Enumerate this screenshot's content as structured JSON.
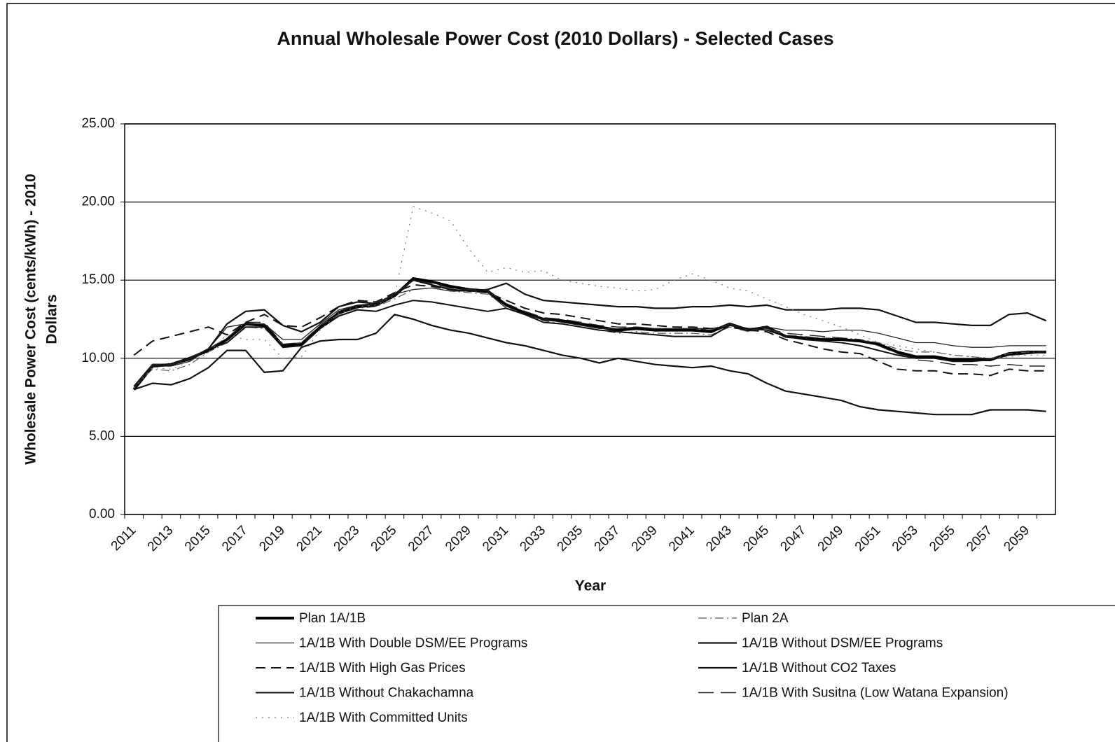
{
  "chart_data": {
    "type": "line",
    "title": "Annual Wholesale Power Cost (2010 Dollars) - Selected Cases",
    "xlabel": "Year",
    "ylabel": [
      "Wholesale Power Cost (cents/kWh) - 2010",
      "Dollars"
    ],
    "categories": [
      "2011",
      null,
      "2013",
      null,
      "2015",
      null,
      "2017",
      null,
      "2019",
      null,
      "2021",
      null,
      "2023",
      null,
      "2025",
      null,
      "2027",
      null,
      "2029",
      null,
      "2031",
      null,
      "2033",
      null,
      "2035",
      null,
      "2037",
      null,
      "2039",
      null,
      "2041",
      null,
      "2043",
      null,
      "2045",
      null,
      "2047",
      null,
      "2049",
      null,
      "2051",
      null,
      "2053",
      null,
      "2055",
      null,
      "2057",
      null,
      "2059",
      null
    ],
    "ylim": [
      0,
      25
    ],
    "yticks": [
      {
        "value": 0,
        "label": "0.00"
      },
      {
        "value": 5,
        "label": "5.00"
      },
      {
        "value": 10,
        "label": "10.00"
      },
      {
        "value": 15,
        "label": "15.00"
      },
      {
        "value": 20,
        "label": "20.00"
      },
      {
        "value": 25,
        "label": "25.00"
      }
    ],
    "grid": true,
    "legend": "bottom",
    "series": [
      {
        "name": "Plan 1A/1B",
        "color": "#000000",
        "line_style": "solid",
        "line_width": 4,
        "values": [
          8.0,
          9.5,
          9.6,
          10.0,
          10.5,
          11.2,
          12.2,
          12.1,
          10.8,
          10.9,
          12.0,
          12.9,
          13.3,
          13.4,
          14.0,
          15.1,
          14.9,
          14.6,
          14.4,
          14.3,
          13.4,
          12.9,
          12.5,
          12.4,
          12.2,
          12.0,
          11.8,
          11.9,
          11.8,
          11.8,
          11.8,
          11.7,
          12.2,
          11.8,
          12.0,
          11.4,
          11.3,
          11.2,
          11.2,
          11.1,
          10.9,
          10.4,
          10.1,
          10.1,
          9.9,
          9.9,
          9.9,
          10.3,
          10.4,
          10.4
        ]
      },
      {
        "name": "Plan 2A",
        "color": "#555555",
        "line_style": "dashdot",
        "line_width": 1.2,
        "values": [
          8.2,
          9.3,
          9.2,
          9.6,
          10.4,
          11.0,
          12.0,
          11.9,
          10.9,
          11.0,
          12.1,
          12.8,
          13.2,
          13.3,
          13.8,
          14.4,
          14.5,
          14.3,
          14.2,
          14.1,
          13.3,
          12.8,
          12.4,
          12.2,
          12.0,
          11.8,
          11.6,
          11.7,
          11.6,
          11.6,
          11.6,
          11.5,
          12.0,
          11.7,
          11.9,
          11.5,
          11.4,
          11.3,
          11.3,
          11.2,
          11.0,
          10.6,
          10.4,
          10.4,
          10.2,
          10.1,
          10.0,
          10.3,
          10.4,
          10.4
        ]
      },
      {
        "name": "1A/1B With Double DSM/EE Programs",
        "color": "#222222",
        "line_style": "solid",
        "line_width": 1.3,
        "values": [
          8.1,
          9.5,
          9.5,
          9.8,
          10.6,
          12.0,
          12.2,
          12.2,
          11.2,
          11.2,
          12.2,
          13.1,
          13.4,
          13.4,
          14.1,
          14.4,
          14.5,
          14.3,
          14.3,
          14.2,
          13.2,
          12.8,
          12.5,
          12.3,
          12.1,
          11.9,
          11.9,
          12.0,
          11.9,
          11.9,
          11.9,
          11.9,
          12.1,
          11.9,
          12.0,
          11.8,
          11.8,
          11.7,
          11.8,
          11.8,
          11.6,
          11.3,
          11.0,
          11.0,
          10.8,
          10.7,
          10.7,
          10.8,
          10.8,
          10.8
        ]
      },
      {
        "name": "1A/1B Without DSM/EE Programs",
        "color": "#111111",
        "line_style": "solid",
        "line_width": 2.2,
        "values": [
          8.2,
          9.6,
          9.6,
          9.9,
          10.6,
          12.2,
          13.0,
          13.1,
          12.1,
          11.7,
          12.3,
          13.3,
          13.6,
          13.5,
          14.1,
          15.0,
          14.7,
          14.4,
          14.3,
          14.4,
          14.8,
          14.1,
          13.7,
          13.6,
          13.5,
          13.4,
          13.3,
          13.3,
          13.2,
          13.2,
          13.3,
          13.3,
          13.4,
          13.3,
          13.4,
          13.1,
          13.1,
          13.1,
          13.2,
          13.2,
          13.1,
          12.7,
          12.3,
          12.3,
          12.2,
          12.1,
          12.1,
          12.8,
          12.9,
          12.4
        ]
      },
      {
        "name": "1A/1B With High Gas Prices",
        "color": "#111111",
        "line_style": "dashed",
        "line_width": 2,
        "values": [
          10.2,
          11.1,
          11.4,
          11.7,
          12.0,
          11.5,
          12.3,
          12.8,
          12.1,
          12.0,
          12.6,
          13.3,
          13.7,
          13.6,
          14.2,
          14.7,
          14.6,
          14.4,
          14.3,
          14.2,
          13.7,
          13.2,
          12.9,
          12.8,
          12.6,
          12.4,
          12.2,
          12.2,
          12.1,
          12.0,
          12.0,
          11.9,
          12.0,
          11.8,
          11.7,
          11.2,
          10.9,
          10.6,
          10.4,
          10.3,
          9.8,
          9.3,
          9.2,
          9.2,
          9.0,
          9.0,
          8.9,
          9.3,
          9.2,
          9.2
        ]
      },
      {
        "name": "1A/1B Without CO2 Taxes",
        "color": "#111111",
        "line_style": "solid",
        "line_width": 2.2,
        "values": [
          8.0,
          8.4,
          8.3,
          8.7,
          9.4,
          10.5,
          10.5,
          9.1,
          9.2,
          10.7,
          11.1,
          11.2,
          11.2,
          11.6,
          12.8,
          12.5,
          12.1,
          11.8,
          11.6,
          11.3,
          11.0,
          10.8,
          10.5,
          10.2,
          10.0,
          9.7,
          10.0,
          9.8,
          9.6,
          9.5,
          9.4,
          9.5,
          9.2,
          9.0,
          8.4,
          7.9,
          7.7,
          7.5,
          7.3,
          6.9,
          6.7,
          6.6,
          6.5,
          6.4,
          6.4,
          6.4,
          6.7,
          6.7,
          6.7,
          6.6
        ]
      },
      {
        "name": "1A/1B Without Chakachamna",
        "color": "#111111",
        "line_style": "solid",
        "line_width": 2,
        "values": [
          8.1,
          9.6,
          9.6,
          10.0,
          10.6,
          11.0,
          12.0,
          12.0,
          10.7,
          10.8,
          11.9,
          12.7,
          13.1,
          13.0,
          13.4,
          13.7,
          13.6,
          13.4,
          13.2,
          13.0,
          13.2,
          12.8,
          12.3,
          12.2,
          12.0,
          11.8,
          11.7,
          11.6,
          11.5,
          11.4,
          11.4,
          11.4,
          12.1,
          11.9,
          11.8,
          11.4,
          11.2,
          11.1,
          11.0,
          10.8,
          10.5,
          10.2,
          10.0,
          10.0,
          9.8,
          9.8,
          9.9,
          10.2,
          10.3,
          10.4
        ]
      },
      {
        "name": "1A/1B With Susitna (Low Watana Expansion)",
        "color": "#222222",
        "line_style": "longdash",
        "line_width": 1.4,
        "values": [
          8.1,
          9.6,
          9.6,
          10.0,
          10.6,
          11.3,
          12.3,
          12.3,
          10.9,
          11.0,
          12.1,
          13.0,
          13.4,
          13.5,
          14.1,
          15.0,
          14.8,
          14.5,
          14.4,
          14.3,
          13.5,
          13.0,
          12.6,
          12.5,
          12.3,
          12.1,
          12.0,
          12.0,
          11.9,
          11.9,
          11.9,
          11.8,
          12.2,
          11.8,
          11.9,
          11.6,
          11.5,
          11.4,
          11.3,
          11.2,
          10.8,
          10.3,
          9.9,
          9.8,
          9.6,
          9.6,
          9.5,
          9.6,
          9.5,
          9.5
        ]
      },
      {
        "name": "1A/1B With Committed Units",
        "color": "#777777",
        "line_style": "dotted",
        "line_width": 1.2,
        "values": [
          8.1,
          9.4,
          9.3,
          9.8,
          10.4,
          11.5,
          11.2,
          11.2,
          10.0,
          10.1,
          11.8,
          12.9,
          13.3,
          13.4,
          14.0,
          19.7,
          19.3,
          18.8,
          17.0,
          15.5,
          15.8,
          15.5,
          15.6,
          15.0,
          14.8,
          14.6,
          14.5,
          14.3,
          14.4,
          15.0,
          15.4,
          15.0,
          14.5,
          14.3,
          13.8,
          13.3,
          12.8,
          12.4,
          12.0,
          11.5,
          11.0,
          10.8,
          10.6,
          10.4,
          10.2,
          10.1,
          10.0,
          10.1,
          10.2,
          10.2
        ]
      }
    ]
  }
}
